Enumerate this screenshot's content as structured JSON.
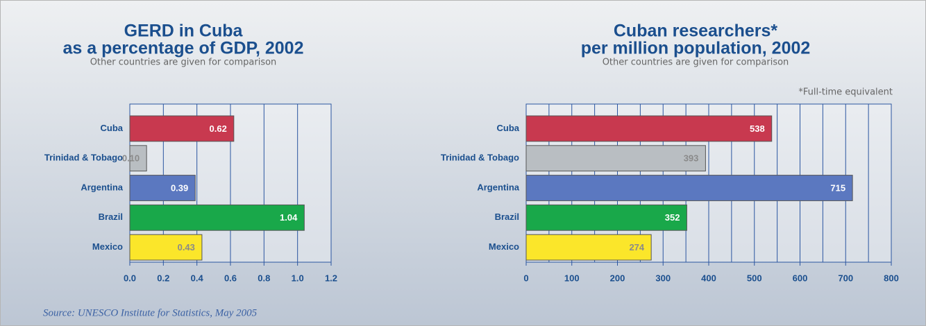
{
  "chart_data": [
    {
      "type": "bar",
      "orientation": "horizontal",
      "title": [
        "GERD in Cuba",
        "as a percentage of GDP, 2002"
      ],
      "subtitle": "Other countries are given for comparison",
      "categories": [
        "Cuba",
        "Trinidad & Tobago",
        "Argentina",
        "Brazil",
        "Mexico"
      ],
      "values": [
        0.62,
        0.1,
        0.39,
        1.04,
        0.43
      ],
      "value_labels": [
        "0.62",
        "0.10",
        "0.39",
        "1.04",
        "0.43"
      ],
      "colors": [
        "#c8394f",
        "#b9bec2",
        "#5b78c0",
        "#19a84a",
        "#fbe62a"
      ],
      "xlim": [
        0,
        1.2
      ],
      "xticks": [
        {
          "value": 0,
          "label": "0.0"
        },
        0.2,
        0.4,
        0.6,
        0.8,
        {
          "value": 1,
          "label": "1.0"
        },
        1.2
      ],
      "grid": true
    },
    {
      "type": "bar",
      "orientation": "horizontal",
      "title": [
        "Cuban researchers*",
        "per million population, 2002"
      ],
      "subtitle": "Other countries are given for comparison",
      "annotation": "*Full-time equivalent",
      "categories": [
        "Cuba",
        "Trinidad & Tobago",
        "Argentina",
        "Brazil",
        "Mexico"
      ],
      "values": [
        538,
        393,
        715,
        352,
        274
      ],
      "colors": [
        "#c8394f",
        "#b9bec2",
        "#5b78c0",
        "#19a84a",
        "#fbe62a"
      ],
      "xlim": [
        0,
        800
      ],
      "xticks": [
        0,
        100,
        200,
        300,
        400,
        500,
        600,
        700,
        800
      ],
      "xminorticks": [
        50,
        150,
        250,
        350,
        450,
        550,
        650,
        750
      ],
      "grid": true
    }
  ],
  "source": "Source: UNESCO Institute for Statistics, May 2005"
}
